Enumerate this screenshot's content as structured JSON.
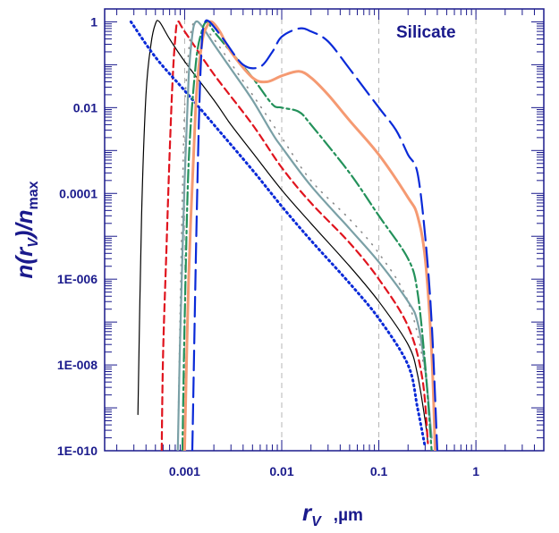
{
  "chart_data": {
    "type": "line",
    "xscale": "log",
    "yscale": "log",
    "xlim": [
      0.00015,
      5
    ],
    "ylim": [
      1e-10,
      2
    ],
    "x_ticks": [
      {
        "value": 0.001,
        "label": "0.001"
      },
      {
        "value": 0.01,
        "label": "0.01"
      },
      {
        "value": 0.1,
        "label": "0.1"
      },
      {
        "value": 1,
        "label": "1"
      }
    ],
    "y_ticks": [
      {
        "value": 1,
        "label": "1"
      },
      {
        "value": 0.01,
        "label": "0.01"
      },
      {
        "value": 0.0001,
        "label": "0.0001"
      },
      {
        "value": 1e-06,
        "label": "1E-006"
      },
      {
        "value": 1e-08,
        "label": "1E-008"
      },
      {
        "value": 1e-10,
        "label": "1E-010"
      }
    ],
    "vertical_gridlines": [
      0.001,
      0.01,
      0.1,
      1
    ],
    "annotation": "Silicate",
    "ylabel": {
      "main": "n(r",
      "sub": "V",
      "close": ")/n",
      "sub2": "max"
    },
    "xlabel": {
      "main": "r",
      "sub": "V",
      "unit": ",µm"
    },
    "series": [
      {
        "name": "solid-black",
        "color": "#000000",
        "dash": "solid",
        "width": 1.2,
        "points": [
          [
            0.00033,
            7e-10
          ],
          [
            0.00036,
            3e-05
          ],
          [
            0.0004,
            0.02
          ],
          [
            0.00045,
            0.3
          ],
          [
            0.0005,
            0.9
          ],
          [
            0.00055,
            1.0
          ],
          [
            0.0007,
            0.4
          ],
          [
            0.001,
            0.12
          ],
          [
            0.002,
            0.015
          ],
          [
            0.003,
            0.004
          ],
          [
            0.005,
            0.0009
          ],
          [
            0.01,
            0.00012
          ],
          [
            0.02,
            2e-05
          ],
          [
            0.05,
            2e-06
          ],
          [
            0.1,
            3e-07
          ],
          [
            0.2,
            3e-08
          ],
          [
            0.25,
            6e-09
          ],
          [
            0.3,
            5e-10
          ],
          [
            0.32,
            1.5e-10
          ]
        ]
      },
      {
        "name": "dashed-red",
        "color": "#e0141e",
        "dash": "8,5",
        "width": 2.2,
        "points": [
          [
            0.00058,
            1e-10
          ],
          [
            0.0006,
            2e-08
          ],
          [
            0.00065,
            5e-06
          ],
          [
            0.0007,
            0.0008
          ],
          [
            0.00075,
            0.04
          ],
          [
            0.0008,
            0.4
          ],
          [
            0.00085,
            1.0
          ],
          [
            0.001,
            0.6
          ],
          [
            0.002,
            0.06
          ],
          [
            0.005,
            0.004
          ],
          [
            0.01,
            0.0004
          ],
          [
            0.02,
            6e-05
          ],
          [
            0.05,
            7e-06
          ],
          [
            0.1,
            1e-06
          ],
          [
            0.2,
            8e-08
          ],
          [
            0.28,
            5e-09
          ],
          [
            0.32,
            1.5e-10
          ]
        ]
      },
      {
        "name": "dotted-gray",
        "color": "#8a8a8a",
        "dash": "1,8",
        "width": 1.6,
        "points": [
          [
            0.00085,
            1e-10
          ],
          [
            0.0009,
            2e-07
          ],
          [
            0.00095,
            0.0001
          ],
          [
            0.001,
            0.01
          ],
          [
            0.0011,
            0.2
          ],
          [
            0.0012,
            0.8
          ],
          [
            0.00135,
            1.0
          ],
          [
            0.0015,
            0.8
          ],
          [
            0.002,
            0.4
          ],
          [
            0.005,
            0.02
          ],
          [
            0.01,
            0.002
          ],
          [
            0.02,
            0.0002
          ],
          [
            0.05,
            2.5e-05
          ],
          [
            0.1,
            4e-06
          ],
          [
            0.2,
            3e-07
          ],
          [
            0.3,
            6e-09
          ],
          [
            0.35,
            1e-10
          ]
        ]
      },
      {
        "name": "dotted-blue",
        "color": "#0a2ad8",
        "dash": "1.5,4",
        "width": 3,
        "points": [
          [
            0.00028,
            1.0
          ],
          [
            0.0005,
            0.15
          ],
          [
            0.001,
            0.025
          ],
          [
            0.002,
            0.004
          ],
          [
            0.005,
            0.00035
          ],
          [
            0.01,
            5e-05
          ],
          [
            0.02,
            8e-06
          ],
          [
            0.05,
            8e-07
          ],
          [
            0.1,
            1.2e-07
          ],
          [
            0.2,
            1e-08
          ],
          [
            0.25,
            1e-09
          ],
          [
            0.3,
            1.2e-10
          ]
        ]
      },
      {
        "name": "teal-gray",
        "color": "#7aa0a6",
        "dash": "solid",
        "width": 2.2,
        "points": [
          [
            0.00085,
            1e-10
          ],
          [
            0.0009,
            5e-08
          ],
          [
            0.001,
            0.0002
          ],
          [
            0.0011,
            0.05
          ],
          [
            0.0012,
            0.5
          ],
          [
            0.0013,
            1.0
          ],
          [
            0.0015,
            0.8
          ],
          [
            0.002,
            0.3
          ],
          [
            0.003,
            0.08
          ],
          [
            0.005,
            0.015
          ],
          [
            0.008,
            0.0025
          ],
          [
            0.01,
            0.0012
          ],
          [
            0.02,
            0.00015
          ],
          [
            0.05,
            1.5e-05
          ],
          [
            0.1,
            2.5e-06
          ],
          [
            0.2,
            3e-07
          ],
          [
            0.25,
            1e-07
          ],
          [
            0.3,
            8e-09
          ],
          [
            0.35,
            2e-10
          ]
        ]
      },
      {
        "name": "green-dashdot",
        "color": "#23915a",
        "dash": "14,4,3,4",
        "width": 2.2,
        "points": [
          [
            0.00095,
            1e-10
          ],
          [
            0.001,
            1e-07
          ],
          [
            0.0011,
            0.0005
          ],
          [
            0.0013,
            0.1
          ],
          [
            0.0015,
            0.6
          ],
          [
            0.0017,
            1.0
          ],
          [
            0.002,
            0.6
          ],
          [
            0.003,
            0.2
          ],
          [
            0.005,
            0.05
          ],
          [
            0.008,
            0.012
          ],
          [
            0.01,
            0.01
          ],
          [
            0.015,
            0.008
          ],
          [
            0.02,
            0.004
          ],
          [
            0.05,
            0.0003
          ],
          [
            0.1,
            3e-05
          ],
          [
            0.2,
            3e-06
          ],
          [
            0.25,
            5e-07
          ],
          [
            0.3,
            1e-08
          ],
          [
            0.35,
            1e-10
          ]
        ]
      },
      {
        "name": "orange-thick",
        "color": "#f59a72",
        "dash": "solid",
        "width": 3,
        "points": [
          [
            0.001,
            1e-10
          ],
          [
            0.0011,
            1e-06
          ],
          [
            0.0013,
            0.01
          ],
          [
            0.0015,
            0.3
          ],
          [
            0.0017,
            0.8
          ],
          [
            0.0019,
            1.0
          ],
          [
            0.0023,
            0.6
          ],
          [
            0.003,
            0.2
          ],
          [
            0.005,
            0.05
          ],
          [
            0.007,
            0.04
          ],
          [
            0.01,
            0.055
          ],
          [
            0.015,
            0.07
          ],
          [
            0.02,
            0.05
          ],
          [
            0.03,
            0.02
          ],
          [
            0.05,
            0.005
          ],
          [
            0.1,
            0.0008
          ],
          [
            0.2,
            8e-05
          ],
          [
            0.25,
            3e-05
          ],
          [
            0.3,
            3e-06
          ],
          [
            0.35,
            2e-08
          ],
          [
            0.38,
            1e-10
          ]
        ]
      },
      {
        "name": "blue-longdash",
        "color": "#0a2ad8",
        "dash": "22,8",
        "width": 2.2,
        "points": [
          [
            0.0012,
            1e-10
          ],
          [
            0.0013,
            2e-06
          ],
          [
            0.0014,
            0.004
          ],
          [
            0.0015,
            0.3
          ],
          [
            0.0016,
            0.9
          ],
          [
            0.0018,
            1.0
          ],
          [
            0.0025,
            0.4
          ],
          [
            0.004,
            0.1
          ],
          [
            0.006,
            0.09
          ],
          [
            0.008,
            0.2
          ],
          [
            0.01,
            0.45
          ],
          [
            0.015,
            0.7
          ],
          [
            0.02,
            0.6
          ],
          [
            0.03,
            0.35
          ],
          [
            0.05,
            0.08
          ],
          [
            0.1,
            0.01
          ],
          [
            0.15,
            0.003
          ],
          [
            0.2,
            0.0008
          ],
          [
            0.25,
            0.0003
          ],
          [
            0.3,
            1e-05
          ],
          [
            0.35,
            1e-07
          ],
          [
            0.4,
            1e-10
          ]
        ]
      }
    ]
  }
}
